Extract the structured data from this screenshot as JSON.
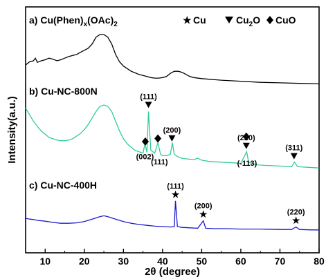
{
  "chart_data": {
    "type": "line",
    "xlabel": "2θ (degree)",
    "ylabel": "Intensity(a.u.)",
    "xlim": [
      5,
      80
    ],
    "xticks": [
      "10",
      "20",
      "30",
      "40",
      "50",
      "60",
      "70",
      "80"
    ],
    "legend": {
      "position": "top-right",
      "items": [
        {
          "symbol": "star",
          "label": "Cu"
        },
        {
          "symbol": "triangle-down",
          "label": "Cu",
          "sub": "2",
          "suffix": "O"
        },
        {
          "symbol": "diamond",
          "label": "CuO"
        }
      ]
    },
    "series": [
      {
        "name_parts": {
          "pre": "a) Cu(Phen)",
          "sub1": "x",
          "mid": "(OAc)",
          "sub2": "2"
        },
        "color": "#000000",
        "points": [
          [
            5,
            0.42
          ],
          [
            6,
            0.48
          ],
          [
            7,
            0.5
          ],
          [
            7.5,
            0.55
          ],
          [
            8,
            0.47
          ],
          [
            9,
            0.5
          ],
          [
            10,
            0.52
          ],
          [
            11,
            0.55
          ],
          [
            12,
            0.53
          ],
          [
            13,
            0.5
          ],
          [
            14,
            0.52
          ],
          [
            15,
            0.55
          ],
          [
            16,
            0.58
          ],
          [
            17,
            0.6
          ],
          [
            18,
            0.62
          ],
          [
            19,
            0.66
          ],
          [
            20,
            0.7
          ],
          [
            21,
            0.74
          ],
          [
            22,
            0.82
          ],
          [
            23,
            0.95
          ],
          [
            24,
            1.0
          ],
          [
            25,
            1.0
          ],
          [
            26,
            0.95
          ],
          [
            27,
            0.82
          ],
          [
            28,
            0.62
          ],
          [
            29,
            0.48
          ],
          [
            30,
            0.4
          ],
          [
            31,
            0.35
          ],
          [
            32,
            0.3
          ],
          [
            33,
            0.27
          ],
          [
            34,
            0.24
          ],
          [
            35,
            0.22
          ],
          [
            36,
            0.2
          ],
          [
            37,
            0.18
          ],
          [
            38,
            0.17
          ],
          [
            39,
            0.17
          ],
          [
            40,
            0.18
          ],
          [
            41,
            0.2
          ],
          [
            42,
            0.26
          ],
          [
            43,
            0.3
          ],
          [
            44,
            0.3
          ],
          [
            45,
            0.28
          ],
          [
            46,
            0.24
          ],
          [
            47,
            0.2
          ],
          [
            48,
            0.18
          ],
          [
            50,
            0.16
          ],
          [
            55,
            0.13
          ],
          [
            60,
            0.11
          ],
          [
            65,
            0.09
          ],
          [
            70,
            0.08
          ],
          [
            75,
            0.07
          ],
          [
            80,
            0.06
          ]
        ],
        "markers": []
      },
      {
        "name": "b) Cu-NC-800N",
        "color": "#2fcc9a",
        "points": [
          [
            5,
            0.95
          ],
          [
            6,
            0.85
          ],
          [
            7,
            0.75
          ],
          [
            8,
            0.67
          ],
          [
            9,
            0.6
          ],
          [
            10,
            0.55
          ],
          [
            11,
            0.5
          ],
          [
            12,
            0.48
          ],
          [
            13,
            0.46
          ],
          [
            14,
            0.45
          ],
          [
            15,
            0.45
          ],
          [
            16,
            0.46
          ],
          [
            17,
            0.48
          ],
          [
            18,
            0.52
          ],
          [
            19,
            0.56
          ],
          [
            20,
            0.62
          ],
          [
            21,
            0.7
          ],
          [
            22,
            0.8
          ],
          [
            23,
            0.9
          ],
          [
            24,
            0.98
          ],
          [
            25,
            1.0
          ],
          [
            26,
            0.98
          ],
          [
            27,
            0.9
          ],
          [
            28,
            0.75
          ],
          [
            29,
            0.6
          ],
          [
            30,
            0.48
          ],
          [
            31,
            0.4
          ],
          [
            32,
            0.35
          ],
          [
            33,
            0.3
          ],
          [
            34,
            0.28
          ],
          [
            35,
            0.26
          ],
          [
            35.5,
            0.4
          ],
          [
            36,
            0.27
          ],
          [
            36.4,
            0.9
          ],
          [
            37,
            0.3
          ],
          [
            38,
            0.26
          ],
          [
            38.8,
            0.42
          ],
          [
            39.5,
            0.24
          ],
          [
            40,
            0.22
          ],
          [
            41,
            0.22
          ],
          [
            42,
            0.24
          ],
          [
            42.5,
            0.42
          ],
          [
            43,
            0.24
          ],
          [
            44,
            0.2
          ],
          [
            45,
            0.18
          ],
          [
            46,
            0.17
          ],
          [
            48,
            0.16
          ],
          [
            49,
            0.18
          ],
          [
            50,
            0.15
          ],
          [
            52,
            0.13
          ],
          [
            55,
            0.12
          ],
          [
            58,
            0.11
          ],
          [
            60,
            0.1
          ],
          [
            61.5,
            0.28
          ],
          [
            62,
            0.12
          ],
          [
            64,
            0.08
          ],
          [
            66,
            0.07
          ],
          [
            70,
            0.06
          ],
          [
            73,
            0.05
          ],
          [
            73.7,
            0.12
          ],
          [
            74.5,
            0.05
          ],
          [
            77,
            0.04
          ],
          [
            80,
            0.03
          ]
        ],
        "markers": [
          {
            "x": 35.6,
            "symbol": "diamond",
            "label": ""
          },
          {
            "x": 36.4,
            "symbol": "triangle-down",
            "label": "(111)"
          },
          {
            "x": 38.8,
            "symbol": "diamond",
            "label": ""
          },
          {
            "x": 42.4,
            "symbol": "triangle-down",
            "label": "(200)"
          },
          {
            "x": 61.4,
            "symbol": "triangle-down",
            "label": "(220)"
          },
          {
            "x": 61.4,
            "symbol": "diamond",
            "label": ""
          },
          {
            "x": 73.6,
            "symbol": "triangle-down",
            "label": "(311)"
          }
        ],
        "below_labels": [
          {
            "x": 35.5,
            "label": "(002)"
          },
          {
            "x": 39.2,
            "label": "(111)"
          },
          {
            "x": 61.6,
            "label": "(-113)"
          }
        ]
      },
      {
        "name": "c) Cu-NC-400H",
        "color": "#1a1acc",
        "points": [
          [
            5,
            0.3
          ],
          [
            6,
            0.28
          ],
          [
            7,
            0.27
          ],
          [
            8,
            0.25
          ],
          [
            10,
            0.23
          ],
          [
            12,
            0.2
          ],
          [
            14,
            0.18
          ],
          [
            16,
            0.18
          ],
          [
            18,
            0.19
          ],
          [
            20,
            0.22
          ],
          [
            22,
            0.28
          ],
          [
            24,
            0.34
          ],
          [
            25,
            0.36
          ],
          [
            26,
            0.34
          ],
          [
            28,
            0.28
          ],
          [
            30,
            0.22
          ],
          [
            32,
            0.18
          ],
          [
            34,
            0.15
          ],
          [
            36,
            0.13
          ],
          [
            38,
            0.11
          ],
          [
            40,
            0.1
          ],
          [
            42,
            0.09
          ],
          [
            43,
            0.1
          ],
          [
            43.3,
            0.72
          ],
          [
            43.8,
            0.1
          ],
          [
            45,
            0.08
          ],
          [
            47,
            0.07
          ],
          [
            49,
            0.06
          ],
          [
            50.4,
            0.24
          ],
          [
            51,
            0.06
          ],
          [
            53,
            0.05
          ],
          [
            56,
            0.05
          ],
          [
            60,
            0.04
          ],
          [
            65,
            0.04
          ],
          [
            70,
            0.03
          ],
          [
            73,
            0.03
          ],
          [
            74.1,
            0.09
          ],
          [
            75,
            0.03
          ],
          [
            78,
            0.02
          ],
          [
            80,
            0.02
          ]
        ],
        "markers": [
          {
            "x": 43.3,
            "symbol": "star",
            "label": "(111)"
          },
          {
            "x": 50.4,
            "symbol": "star",
            "label": "(200)"
          },
          {
            "x": 74.1,
            "symbol": "star",
            "label": "(220)"
          }
        ]
      }
    ]
  }
}
